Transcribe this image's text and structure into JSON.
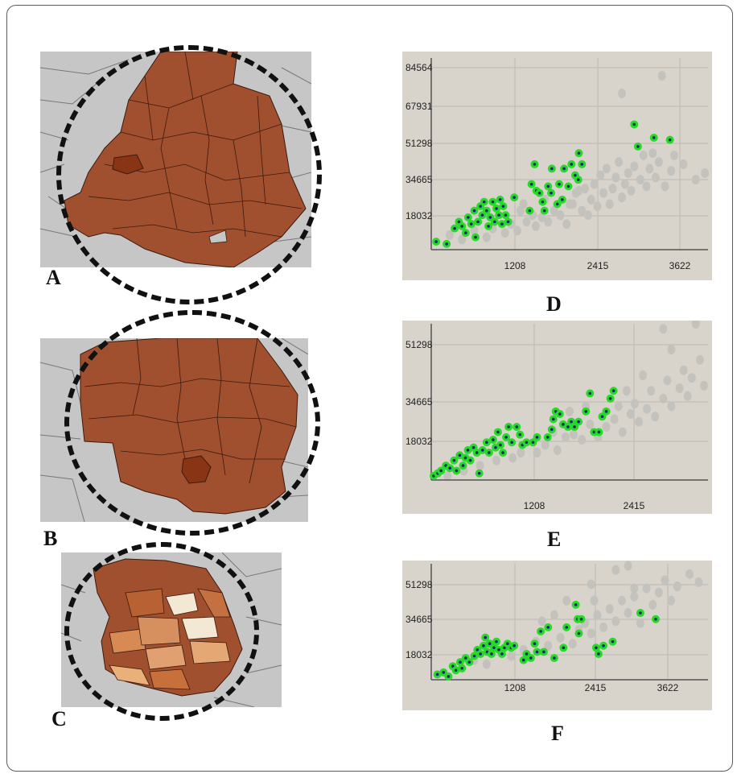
{
  "panels": {
    "A": "A",
    "B": "B",
    "C": "C",
    "D": "D",
    "E": "E",
    "F": "F"
  },
  "colors": {
    "map_fill": "#a0502e",
    "map_highlight": "#8a3416",
    "map_background": "#c6c6c6",
    "plot_background": "#d8d4cc",
    "selected_point": "#2ad82a",
    "background_point": "#c4c2bd"
  },
  "chart_data": [
    {
      "panel": "D",
      "type": "scatter",
      "x_ticks": [
        "1208",
        "2415",
        "3622"
      ],
      "y_ticks": [
        "84564",
        "67931",
        "51298",
        "34665",
        "18032"
      ],
      "xlim": [
        0,
        4500
      ],
      "ylim": [
        1400,
        88000
      ],
      "highlighted": [
        [
          80,
          5000
        ],
        [
          250,
          4000
        ],
        [
          380,
          11000
        ],
        [
          450,
          14000
        ],
        [
          500,
          12000
        ],
        [
          560,
          9000
        ],
        [
          600,
          16000
        ],
        [
          650,
          13000
        ],
        [
          700,
          19000
        ],
        [
          720,
          7000
        ],
        [
          760,
          14000
        ],
        [
          800,
          21000
        ],
        [
          830,
          17000
        ],
        [
          860,
          23000
        ],
        [
          900,
          19000
        ],
        [
          930,
          12000
        ],
        [
          960,
          16000
        ],
        [
          1000,
          23000
        ],
        [
          1030,
          14000
        ],
        [
          1060,
          20000
        ],
        [
          1100,
          17000
        ],
        [
          1120,
          24000
        ],
        [
          1150,
          13000
        ],
        [
          1170,
          21000
        ],
        [
          1210,
          17000
        ],
        [
          1250,
          14000
        ],
        [
          1350,
          25000
        ],
        [
          1600,
          19000
        ],
        [
          1630,
          31000
        ],
        [
          1680,
          40000
        ],
        [
          1710,
          28000
        ],
        [
          1760,
          27000
        ],
        [
          1810,
          23000
        ],
        [
          1840,
          19000
        ],
        [
          1900,
          30000
        ],
        [
          1950,
          27000
        ],
        [
          1960,
          38000
        ],
        [
          2050,
          22000
        ],
        [
          2080,
          31000
        ],
        [
          2130,
          24000
        ],
        [
          2160,
          38000
        ],
        [
          2230,
          30000
        ],
        [
          2280,
          40000
        ],
        [
          2340,
          35000
        ],
        [
          2390,
          33000
        ],
        [
          2400,
          45000
        ],
        [
          2450,
          40000
        ],
        [
          3300,
          58000
        ],
        [
          3360,
          48000
        ],
        [
          3620,
          52000
        ],
        [
          3880,
          51000
        ]
      ],
      "background": [
        [
          300,
          8000
        ],
        [
          500,
          6000
        ],
        [
          700,
          10000
        ],
        [
          900,
          7000
        ],
        [
          1000,
          11000
        ],
        [
          1200,
          9000
        ],
        [
          1300,
          13000
        ],
        [
          1400,
          10000
        ],
        [
          1450,
          19000
        ],
        [
          1550,
          14000
        ],
        [
          1700,
          12000
        ],
        [
          1800,
          16000
        ],
        [
          1900,
          14000
        ],
        [
          2000,
          19000
        ],
        [
          2100,
          17000
        ],
        [
          2200,
          13000
        ],
        [
          2250,
          22000
        ],
        [
          2350,
          27000
        ],
        [
          2450,
          19000
        ],
        [
          2500,
          29000
        ],
        [
          2550,
          17000
        ],
        [
          2600,
          24000
        ],
        [
          2650,
          31000
        ],
        [
          2700,
          21000
        ],
        [
          2750,
          35000
        ],
        [
          2800,
          27000
        ],
        [
          2850,
          38000
        ],
        [
          2900,
          22000
        ],
        [
          2950,
          29000
        ],
        [
          3000,
          34000
        ],
        [
          3050,
          41000
        ],
        [
          3100,
          25000
        ],
        [
          3150,
          31000
        ],
        [
          3200,
          36000
        ],
        [
          3250,
          28000
        ],
        [
          3300,
          39000
        ],
        [
          3400,
          33000
        ],
        [
          3450,
          44000
        ],
        [
          3500,
          30000
        ],
        [
          3550,
          38000
        ],
        [
          3600,
          45000
        ],
        [
          3650,
          34000
        ],
        [
          3700,
          41000
        ],
        [
          3800,
          30000
        ],
        [
          3900,
          37000
        ],
        [
          4100,
          40000
        ],
        [
          4300,
          33000
        ],
        [
          4450,
          36000
        ],
        [
          3950,
          44000
        ],
        [
          3750,
          80000
        ],
        [
          3100,
          72000
        ],
        [
          2400,
          28000
        ],
        [
          2300,
          22000
        ],
        [
          1850,
          24000
        ],
        [
          1650,
          17000
        ],
        [
          1500,
          22000
        ]
      ]
    },
    {
      "panel": "E",
      "type": "scatter",
      "x_ticks": [
        "1208",
        "2415"
      ],
      "y_ticks": [
        "51298",
        "34665",
        "18032"
      ],
      "xlim": [
        0,
        3400
      ],
      "ylim": [
        1400,
        62000
      ],
      "highlighted": [
        [
          30,
          3000
        ],
        [
          80,
          4000
        ],
        [
          120,
          5000
        ],
        [
          180,
          7000
        ],
        [
          230,
          6000
        ],
        [
          280,
          9000
        ],
        [
          310,
          5000
        ],
        [
          350,
          11000
        ],
        [
          390,
          7000
        ],
        [
          420,
          10000
        ],
        [
          450,
          13000
        ],
        [
          480,
          9000
        ],
        [
          520,
          14000
        ],
        [
          560,
          12000
        ],
        [
          590,
          4000
        ],
        [
          630,
          13000
        ],
        [
          680,
          16000
        ],
        [
          710,
          12000
        ],
        [
          760,
          17000
        ],
        [
          790,
          14000
        ],
        [
          820,
          20000
        ],
        [
          850,
          15000
        ],
        [
          880,
          12000
        ],
        [
          920,
          18000
        ],
        [
          950,
          22000
        ],
        [
          990,
          16000
        ],
        [
          1050,
          22000
        ],
        [
          1090,
          19000
        ],
        [
          1120,
          15000
        ],
        [
          1170,
          16000
        ],
        [
          1250,
          16000
        ],
        [
          1300,
          18000
        ],
        [
          1430,
          18000
        ],
        [
          1480,
          21000
        ],
        [
          1500,
          25000
        ],
        [
          1530,
          28000
        ],
        [
          1580,
          27000
        ],
        [
          1620,
          23000
        ],
        [
          1680,
          22000
        ],
        [
          1720,
          24000
        ],
        [
          1760,
          22000
        ],
        [
          1810,
          24000
        ],
        [
          1900,
          28000
        ],
        [
          1950,
          35000
        ],
        [
          2000,
          20000
        ],
        [
          2060,
          20000
        ],
        [
          2100,
          26000
        ],
        [
          2150,
          28000
        ],
        [
          2200,
          33000
        ],
        [
          2240,
          36000
        ]
      ],
      "background": [
        [
          200,
          3000
        ],
        [
          400,
          5000
        ],
        [
          600,
          7000
        ],
        [
          800,
          9000
        ],
        [
          1000,
          10000
        ],
        [
          1100,
          12000
        ],
        [
          1300,
          12000
        ],
        [
          1400,
          15000
        ],
        [
          1550,
          13000
        ],
        [
          1650,
          18000
        ],
        [
          1700,
          28000
        ],
        [
          1750,
          19000
        ],
        [
          1850,
          17000
        ],
        [
          1950,
          23000
        ],
        [
          2050,
          18000
        ],
        [
          2150,
          22000
        ],
        [
          2250,
          25000
        ],
        [
          2350,
          20000
        ],
        [
          2450,
          27000
        ],
        [
          2500,
          31000
        ],
        [
          2550,
          24000
        ],
        [
          2650,
          29000
        ],
        [
          2700,
          36000
        ],
        [
          2750,
          26000
        ],
        [
          2850,
          33000
        ],
        [
          2900,
          40000
        ],
        [
          2950,
          30000
        ],
        [
          3050,
          37000
        ],
        [
          3100,
          44000
        ],
        [
          3150,
          34000
        ],
        [
          3200,
          41000
        ],
        [
          3300,
          48000
        ],
        [
          3350,
          38000
        ],
        [
          3250,
          62000
        ],
        [
          2850,
          60000
        ],
        [
          2950,
          52000
        ],
        [
          2600,
          42000
        ],
        [
          2400,
          36000
        ],
        [
          1900,
          30000
        ],
        [
          1500,
          20000
        ],
        [
          2300,
          30000
        ]
      ]
    },
    {
      "panel": "F",
      "type": "scatter",
      "x_ticks": [
        "1208",
        "2415",
        "3622"
      ],
      "y_ticks": [
        "51298",
        "34665",
        "18032"
      ],
      "xlim": [
        0,
        4500
      ],
      "ylim": [
        1400,
        58000
      ],
      "highlighted": [
        [
          100,
          4000
        ],
        [
          200,
          5000
        ],
        [
          280,
          3000
        ],
        [
          350,
          8000
        ],
        [
          400,
          6000
        ],
        [
          470,
          10000
        ],
        [
          500,
          7000
        ],
        [
          560,
          12000
        ],
        [
          620,
          10000
        ],
        [
          700,
          13000
        ],
        [
          750,
          16000
        ],
        [
          800,
          14000
        ],
        [
          850,
          18000
        ],
        [
          880,
          22000
        ],
        [
          910,
          15000
        ],
        [
          950,
          19000
        ],
        [
          980,
          14000
        ],
        [
          1020,
          17000
        ],
        [
          1060,
          20000
        ],
        [
          1100,
          16000
        ],
        [
          1150,
          14000
        ],
        [
          1190,
          17000
        ],
        [
          1240,
          19000
        ],
        [
          1300,
          17000
        ],
        [
          1350,
          18000
        ],
        [
          1500,
          11000
        ],
        [
          1550,
          14000
        ],
        [
          1620,
          12000
        ],
        [
          1680,
          19000
        ],
        [
          1720,
          15000
        ],
        [
          1780,
          25000
        ],
        [
          1830,
          15000
        ],
        [
          1900,
          27000
        ],
        [
          2000,
          12000
        ],
        [
          2150,
          17000
        ],
        [
          2200,
          27000
        ],
        [
          2350,
          38000
        ],
        [
          2380,
          31000
        ],
        [
          2400,
          24000
        ],
        [
          2440,
          31000
        ],
        [
          2680,
          17000
        ],
        [
          2720,
          14000
        ],
        [
          2800,
          18000
        ],
        [
          2950,
          20000
        ],
        [
          3400,
          34000
        ],
        [
          3650,
          31000
        ]
      ],
      "background": [
        [
          500,
          7000
        ],
        [
          700,
          11000
        ],
        [
          900,
          9000
        ],
        [
          1300,
          13000
        ],
        [
          1500,
          16000
        ],
        [
          1700,
          20000
        ],
        [
          1900,
          18000
        ],
        [
          2100,
          22000
        ],
        [
          2300,
          19000
        ],
        [
          2400,
          26000
        ],
        [
          2500,
          29000
        ],
        [
          2600,
          24000
        ],
        [
          2700,
          33000
        ],
        [
          2800,
          27000
        ],
        [
          2900,
          36000
        ],
        [
          3000,
          30000
        ],
        [
          3100,
          40000
        ],
        [
          3200,
          34000
        ],
        [
          3300,
          42000
        ],
        [
          3400,
          29000
        ],
        [
          3500,
          46000
        ],
        [
          3600,
          38000
        ],
        [
          3700,
          44000
        ],
        [
          3800,
          50000
        ],
        [
          3900,
          40000
        ],
        [
          4000,
          47000
        ],
        [
          4200,
          53000
        ],
        [
          4350,
          49000
        ],
        [
          3000,
          55000
        ],
        [
          3200,
          57000
        ],
        [
          2600,
          48000
        ],
        [
          2200,
          40000
        ],
        [
          2000,
          33000
        ],
        [
          1800,
          30000
        ],
        [
          2650,
          40000
        ],
        [
          3300,
          46000
        ]
      ]
    }
  ]
}
